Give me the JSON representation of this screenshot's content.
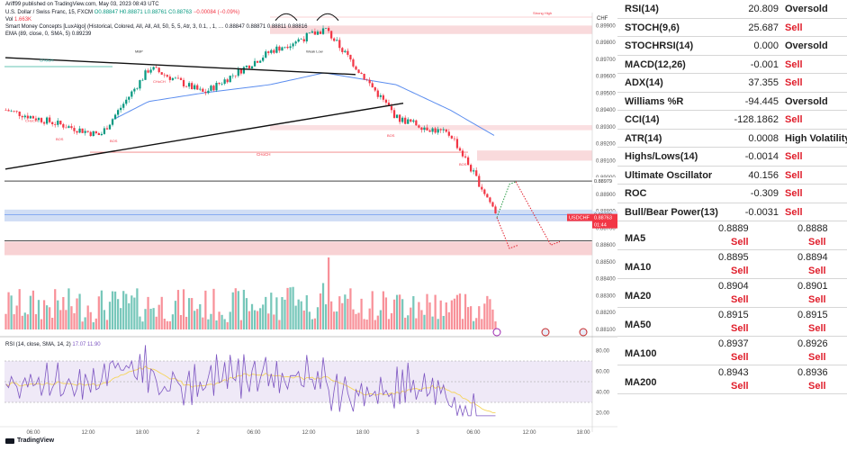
{
  "header": {
    "published": "Ariff99 published on TradingView.com, May 03, 2023 08:43 UTC",
    "symbol_line": "U.S. Dollar / Swiss Franc, 15, FXCM",
    "ohlc": "O0.88847 H0.88871 L0.88761 C0.88763",
    "change": "−0.00084 (−0.09%)",
    "vol_label": "Vol",
    "vol_value": "1.663K",
    "smc_line": "Smart Money Concepts [LuxAlgo] (Historical, Colored, All, All, All, 50, 5, 5, Atr, 3, 0.1, , 1, …",
    "smc_values": "0.88847  0.88871  0.88811  0.88816",
    "ema_line": "EMA (89, close, 0, SMA, 5)",
    "ema_value": "0.89239",
    "rsi_line": "RSI (14, close, SMA, 14, 2)",
    "rsi_values": "17.07  11.90"
  },
  "price_axis": {
    "currency": "CHF",
    "ticks": [
      "0.89900",
      "0.89800",
      "0.89700",
      "0.89600",
      "0.89500",
      "0.89400",
      "0.89300",
      "0.89200",
      "0.89100",
      "0.89000",
      "0.88900",
      "0.88800",
      "0.88700",
      "0.88600",
      "0.88500",
      "0.88400",
      "0.88300",
      "0.88200",
      "0.88100"
    ],
    "label_89000": "0.89000",
    "label_88979": "0.88979",
    "label_88779": "0.88779",
    "symbol_tag": "USDCHF",
    "last_price": "0.88763",
    "countdown": "01:44"
  },
  "rsi_axis": {
    "ticks": [
      "80.00",
      "60.00",
      "40.00",
      "20.00"
    ]
  },
  "time_axis": {
    "ticks": [
      "06:00",
      "12:00",
      "18:00",
      "2",
      "06:00",
      "12:00",
      "18:00",
      "3",
      "06:00",
      "12:00",
      "18:00"
    ]
  },
  "annotations": {
    "choch_a": "CHoCH",
    "choch_b": "CHoCH",
    "choch_c": "CHoCH",
    "choch_d": "CHoCH",
    "bos_a": "BOS",
    "bos_b": "BOS",
    "bos_c": "BOS",
    "bos_d": "BOS",
    "strong_high": "Strong High",
    "mbp": "MBP",
    "weak_low": "Weak Low"
  },
  "logo": "TradingView",
  "colors": {
    "up": "#089981",
    "down": "#f23645",
    "ema": "#5b8def",
    "rsi": "#7e57c2",
    "rsi_ma": "#f5d45b",
    "zone_red": "#f7cacd",
    "zone_blue": "#c5d6f3"
  },
  "chart_data": {
    "type": "line",
    "title": "U.S. Dollar / Swiss Franc, 15, FXCM",
    "xlabel": "",
    "ylabel": "",
    "x": [
      "May 1 06:00",
      "May 1 12:00",
      "May 1 18:00",
      "May 2 00:00",
      "May 2 06:00",
      "May 2 12:00",
      "May 2 18:00",
      "May 3 00:00",
      "May 3 06:00"
    ],
    "series": [
      {
        "values": [
          0.894,
          0.8925,
          0.8965,
          0.895,
          0.8975,
          0.8988,
          0.8935,
          0.8925,
          0.8877
        ]
      },
      {
        "name": "EMA (89, close, 0, SMA, 5)",
        "values": [
          null,
          0.893,
          0.8945,
          0.895,
          0.8955,
          0.8962,
          0.8955,
          0.894,
          0.8924
        ]
      }
    ],
    "ylim": [
      0.881,
      0.8995
    ],
    "last_close": 0.88763,
    "volume": {
      "max_k": 6.5,
      "last": 1.663
    },
    "rsi": {
      "ylim": [
        10,
        90
      ],
      "last": 17.07,
      "ma_last": 11.9
    }
  },
  "indicators": [
    {
      "name": "RSI(14)",
      "value": "20.809",
      "action": "Oversold"
    },
    {
      "name": "STOCH(9,6)",
      "value": "25.687",
      "action": "Sell"
    },
    {
      "name": "STOCHRSI(14)",
      "value": "0.000",
      "action": "Oversold"
    },
    {
      "name": "MACD(12,26)",
      "value": "-0.001",
      "action": "Sell"
    },
    {
      "name": "ADX(14)",
      "value": "37.355",
      "action": "Sell"
    },
    {
      "name": "Williams %R",
      "value": "-94.445",
      "action": "Oversold"
    },
    {
      "name": "CCI(14)",
      "value": "-128.1862",
      "action": "Sell"
    },
    {
      "name": "ATR(14)",
      "value": "0.0008",
      "action": "High Volatility"
    },
    {
      "name": "Highs/Lows(14)",
      "value": "-0.0014",
      "action": "Sell"
    },
    {
      "name": "Ultimate Oscillator",
      "value": "40.156",
      "action": "Sell"
    },
    {
      "name": "ROC",
      "value": "-0.309",
      "action": "Sell"
    },
    {
      "name": "Bull/Bear Power(13)",
      "value": "-0.0031",
      "action": "Sell"
    }
  ],
  "moving_averages": [
    {
      "name": "MA5",
      "simple": "0.8889",
      "simple_action": "Sell",
      "exp": "0.8888",
      "exp_action": "Sell"
    },
    {
      "name": "MA10",
      "simple": "0.8895",
      "simple_action": "Sell",
      "exp": "0.8894",
      "exp_action": "Sell"
    },
    {
      "name": "MA20",
      "simple": "0.8904",
      "simple_action": "Sell",
      "exp": "0.8901",
      "exp_action": "Sell"
    },
    {
      "name": "MA50",
      "simple": "0.8915",
      "simple_action": "Sell",
      "exp": "0.8915",
      "exp_action": "Sell"
    },
    {
      "name": "MA100",
      "simple": "0.8937",
      "simple_action": "Sell",
      "exp": "0.8926",
      "exp_action": "Sell"
    },
    {
      "name": "MA200",
      "simple": "0.8943",
      "simple_action": "Sell",
      "exp": "0.8936",
      "exp_action": "Sell"
    }
  ]
}
